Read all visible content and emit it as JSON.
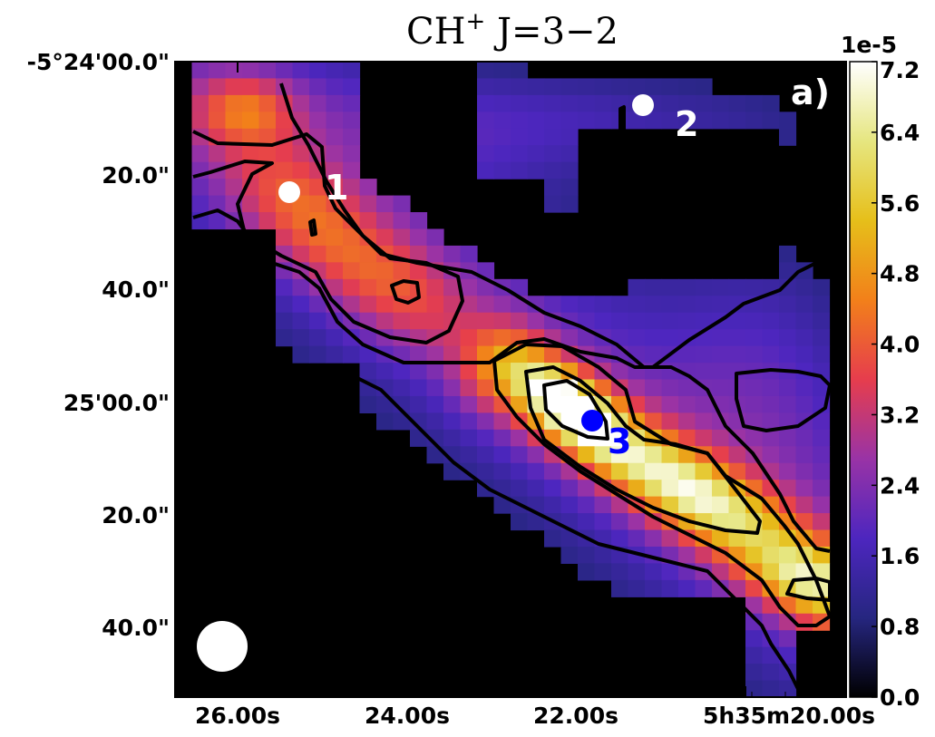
{
  "chart_data": {
    "type": "heatmap",
    "title": "CH$^+$ J$=3\\!-\\!2$",
    "title_parts": {
      "mol": "CH",
      "sup": "+",
      "rest": " J=3−2"
    },
    "panel_label": "a)",
    "colorbar": {
      "multiplier": "1e-5",
      "range": [
        0.0,
        7.2
      ],
      "ticks": [
        "0.0",
        "0.8",
        "1.6",
        "2.4",
        "3.2",
        "4.0",
        "4.8",
        "5.6",
        "6.4",
        "7.2"
      ],
      "colormap": "CMRmap"
    },
    "xaxis": {
      "label": "",
      "ticks": [
        "26.00s",
        "24.00s",
        "22.00s",
        "5h35m20.00s"
      ]
    },
    "yaxis": {
      "label": "",
      "ticks": [
        "-5°24'00.0\"",
        "20.0\"",
        "40.0\"",
        "25'00.0\"",
        "20.0\"",
        "40.0\""
      ]
    },
    "contour_levels": [
      1.6,
      3.2,
      4.8,
      6.4
    ],
    "sources": [
      {
        "id": "1",
        "color": "#ffffff"
      },
      {
        "id": "2",
        "color": "#ffffff"
      },
      {
        "id": "3",
        "color": "#0000ff"
      }
    ],
    "beam": {
      "shape": "circle",
      "color": "#ffffff",
      "corner": "bottom-left"
    },
    "grid": false
  }
}
